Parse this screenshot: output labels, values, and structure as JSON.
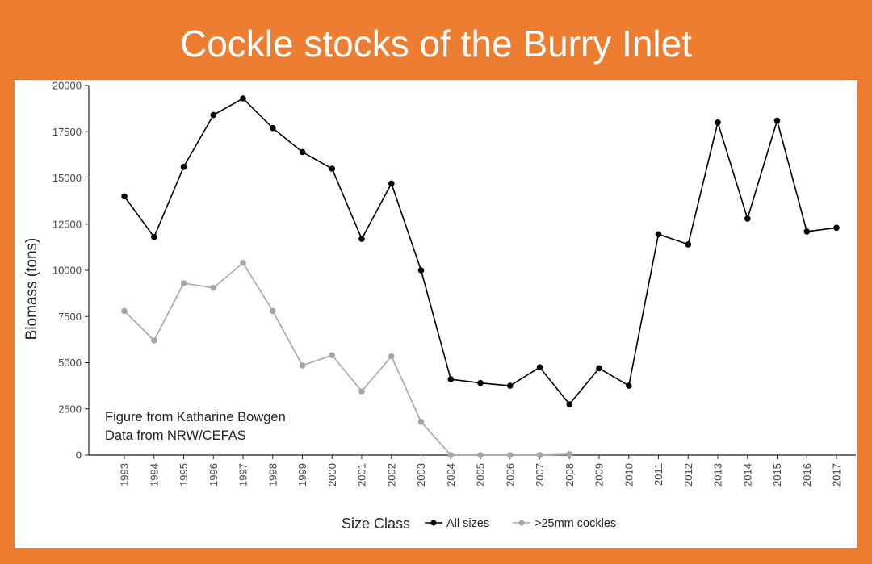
{
  "title": "Cockle stocks of the Burry Inlet",
  "annotation": [
    "Figure from Katharine Bowgen",
    "Data from NRW/CEFAS"
  ],
  "colors": {
    "background": "#ED7D31",
    "panel": "#FFFFFF"
  },
  "chart_data": {
    "type": "line",
    "xlabel": "Size Class",
    "ylabel": "Biomass (tons)",
    "ylim": [
      0,
      20000
    ],
    "yticks": [
      0,
      2500,
      5000,
      7500,
      10000,
      12500,
      15000,
      17500,
      20000
    ],
    "x": [
      1993,
      1994,
      1995,
      1996,
      1997,
      1998,
      1999,
      2000,
      2001,
      2002,
      2003,
      2004,
      2005,
      2006,
      2007,
      2008,
      2009,
      2010,
      2011,
      2012,
      2013,
      2014,
      2015,
      2016,
      2017
    ],
    "grid": false,
    "legend": {
      "title": "Size Class",
      "position": "bottom"
    },
    "series": [
      {
        "name": "All sizes",
        "color": "#000000",
        "values": [
          14000,
          11800,
          15600,
          18400,
          19300,
          17700,
          16400,
          15500,
          11700,
          14700,
          10000,
          4100,
          3900,
          3750,
          4750,
          2750,
          4700,
          3750,
          11950,
          11400,
          18000,
          12800,
          18100,
          12100,
          12300
        ]
      },
      {
        "name": ">25mm cockles",
        "color": "#A6A6A6",
        "values": [
          7800,
          6200,
          9300,
          9050,
          10400,
          7800,
          4850,
          5400,
          3450,
          5350,
          1800,
          0,
          0,
          0,
          0,
          50,
          null,
          null,
          null,
          null,
          null,
          null,
          null,
          null,
          null
        ]
      }
    ]
  }
}
